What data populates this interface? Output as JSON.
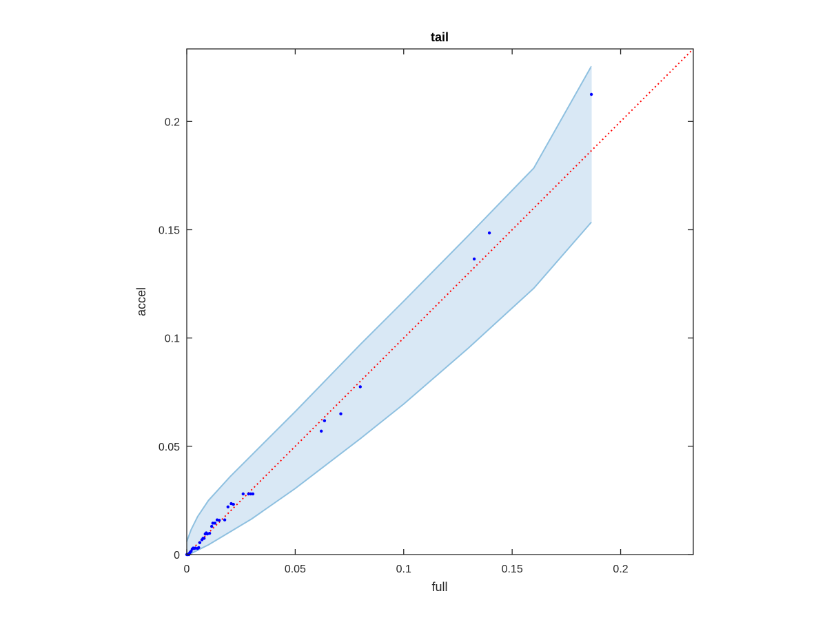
{
  "chart_data": {
    "type": "scatter",
    "title": "tail",
    "xlabel": "full",
    "ylabel": "accel",
    "xlim": [
      0,
      0.2335
    ],
    "ylim": [
      0,
      0.2335
    ],
    "xticks": [
      0,
      0.05,
      0.1,
      0.15,
      0.2
    ],
    "yticks": [
      0,
      0.05,
      0.1,
      0.15,
      0.2
    ],
    "xtick_labels": [
      "0",
      "0.05",
      "0.1",
      "0.15",
      "0.2"
    ],
    "ytick_labels": [
      "0",
      "0.05",
      "0.1",
      "0.15",
      "0.2"
    ],
    "grid": false,
    "colors": {
      "points": "#0000ff",
      "reference_line": "#ff0000",
      "band_fill": "#d9e8f5",
      "band_edge": "#8ec0e0",
      "axes": "#262626"
    },
    "reference_line": {
      "x": [
        0,
        0.2335
      ],
      "y": [
        0,
        0.2335
      ],
      "style": "dotted"
    },
    "band": {
      "x": [
        0.0,
        0.002,
        0.005,
        0.01,
        0.02,
        0.03,
        0.05,
        0.08,
        0.1,
        0.13,
        0.16,
        0.1865
      ],
      "upper": [
        0.006,
        0.0115,
        0.0175,
        0.025,
        0.036,
        0.046,
        0.066,
        0.097,
        0.117,
        0.1475,
        0.1785,
        0.2255
      ],
      "lower": [
        0.0,
        0.0005,
        0.002,
        0.0045,
        0.0105,
        0.0165,
        0.0305,
        0.0535,
        0.0695,
        0.0955,
        0.123,
        0.1535
      ]
    },
    "series": [
      {
        "x": [
          0.0,
          0.0003,
          0.0005,
          0.0008,
          0.001,
          0.0012,
          0.0015,
          0.002,
          0.0025,
          0.003,
          0.0035,
          0.004,
          0.005,
          0.0055,
          0.006,
          0.007,
          0.0075,
          0.008,
          0.0085,
          0.009,
          0.0095,
          0.0105,
          0.0115,
          0.012,
          0.013,
          0.014,
          0.015,
          0.0175,
          0.019,
          0.0205,
          0.0215,
          0.026,
          0.0285,
          0.0295,
          0.0305,
          0.062,
          0.0635,
          0.071,
          0.08,
          0.1325,
          0.1395,
          0.1865
        ],
        "y": [
          0.0,
          0.0,
          0.0,
          0.0002,
          0.0,
          0.0005,
          0.001,
          0.0015,
          0.0025,
          0.003,
          0.0028,
          0.003,
          0.0028,
          0.0032,
          0.0055,
          0.0068,
          0.0075,
          0.0075,
          0.0095,
          0.01,
          0.0095,
          0.0098,
          0.013,
          0.0145,
          0.0145,
          0.016,
          0.0158,
          0.016,
          0.022,
          0.0235,
          0.0232,
          0.028,
          0.028,
          0.028,
          0.028,
          0.057,
          0.0618,
          0.065,
          0.0775,
          0.1365,
          0.1485,
          0.2125
        ]
      }
    ]
  }
}
